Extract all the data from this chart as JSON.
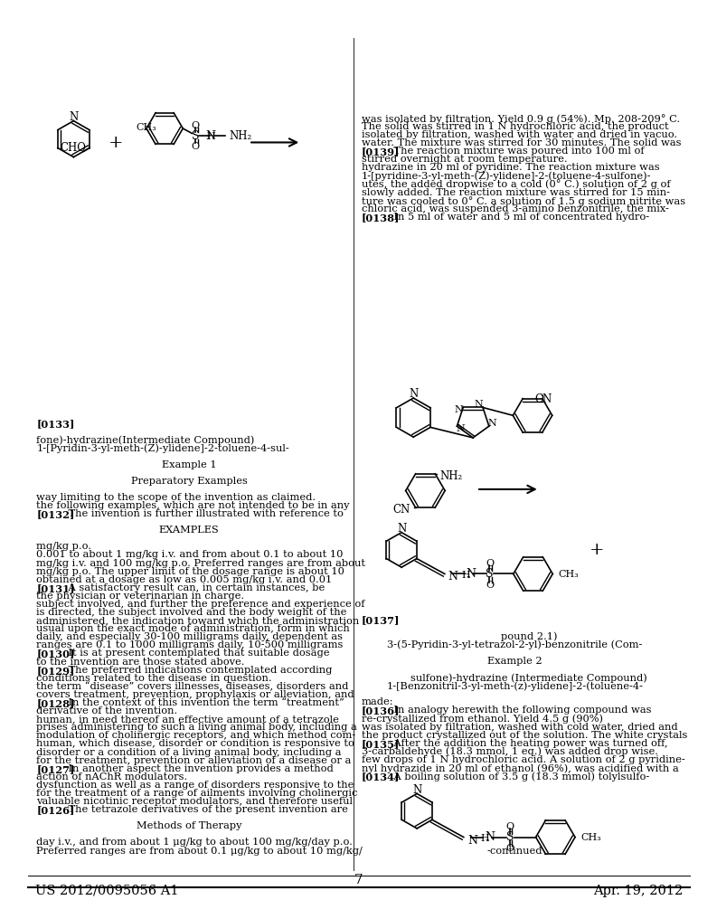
{
  "bg_color": "#ffffff",
  "header_left": "US 2012/0095056 A1",
  "header_right": "Apr. 19, 2012",
  "page_number": "7",
  "continued_label": "-continued",
  "left_col_lines": [
    "Preferred ranges are from about 0.1 μg/kg to about 10 mg/kg/",
    "day i.v., and from about 1 μg/kg to about 100 mg/kg/day p.o.",
    "",
    "Methods of Therapy",
    "",
    "[0126]    The tetrazole derivatives of the present invention are",
    "valuable nicotinic receptor modulators, and therefore useful",
    "for the treatment of a range of ailments involving cholinergic",
    "dysfunction as well as a range of disorders responsive to the",
    "action of nAChR modulators.",
    "[0127]    In another aspect the invention provides a method",
    "for the treatment, prevention or alleviation of a disease or a",
    "disorder or a condition of a living animal body, including a",
    "human, which disease, disorder or condition is responsive to",
    "modulation of cholinergic receptors, and which method com-",
    "prises administering to such a living animal body, including a",
    "human, in need thereof an effective amount of a tetrazole",
    "derivative of the invention.",
    "[0128]    In the context of this invention the term “treatment”",
    "covers treatment, prevention, prophylaxis or alleviation, and",
    "the term “disease” covers illnesses, diseases, disorders and",
    "conditions related to the disease in question.",
    "[0129]    The preferred indications contemplated according",
    "to the invention are those stated above.",
    "[0130]    It is at present contemplated that suitable dosage",
    "ranges are 0.1 to 1000 milligrams daily, 10-500 milligrams",
    "daily, and especially 30-100 milligrams daily, dependent as",
    "usual upon the exact mode of administration, form in which",
    "administered, the indication toward which the administration",
    "is directed, the subject involved and the body weight of the",
    "subject involved, and further the preference and experience of",
    "the physician or veterinarian in charge.",
    "[0131]    A satisfactory result can, in certain instances, be",
    "obtained at a dosage as low as 0.005 mg/kg i.v. and 0.01",
    "mg/kg p.o. The upper limit of the dosage range is about 10",
    "mg/kg i.v. and 100 mg/kg p.o. Preferred ranges are from about",
    "0.001 to about 1 mg/kg i.v. and from about 0.1 to about 10",
    "mg/kg p.o.",
    "",
    "EXAMPLES",
    "",
    "[0132]    The invention is further illustrated with reference to",
    "the following examples, which are not intended to be in any",
    "way limiting to the scope of the invention as claimed.",
    "",
    "Preparatory Examples",
    "",
    "Example 1",
    "",
    "1-[Pyridin-3-yl-meth-(Z)-ylidene]-2-toluene-4-sul-",
    "fone)-hydrazine(Intermediate Compound)",
    "",
    "[0133]"
  ],
  "right_col_lines": [
    "[0134]    A boiling solution of 3.5 g (18.3 mmol) tolylsulfo-",
    "nyl hydrazide in 20 ml of ethanol (96%), was acidified with a",
    "few drops of 1 N hydrochloric acid. A solution of 2 g pyridine-",
    "3-carbaldehyde (18.3 mmol, 1 eq.) was added drop wise.",
    "[0135]    After the addition the heating power was turned off,",
    "the product crystallized out of the solution. The white crystals",
    "was isolated by filtration, washed with cold water, dried and",
    "re-crystallized from ethanol. Yield 4.5 g (90%)",
    "[0136]    In analogy herewith the following compound was",
    "made:",
    "",
    "1-[Benzonitril-3-yl-meth-(z)-ylidene]-2-(toluene-4-",
    "    sulfone)-hydrazine (Intermediate Compound)",
    "",
    "Example 2",
    "",
    "3-(5-Pyridin-3-yl-tetrazol-2-yl)-benzonitrile (Com-",
    "        pound 2.1)",
    "",
    "[0137]"
  ],
  "right_col_lines2": [
    "[0138]    In 5 ml of water and 5 ml of concentrated hydro-",
    "chloric acid, was suspended 3-amino benzonitrile, the mix-",
    "ture was cooled to 0° C. a solution of 1.5 g sodium nitrite was",
    "slowly added. The reaction mixture was stirred for 15 min-",
    "utes, the added dropwise to a cold (0° C.) solution of 2 g of",
    "1-[pyridine-3-yl-meth-(Z)-ylidene]-2-(toluene-4-sulfone)-",
    "hydrazine in 20 ml of pyridine. The reaction mixture was",
    "stirred overnight at room temperature.",
    "[0139]    The reaction mixture was poured into 100 ml of",
    "water. The mixture was stirred for 30 minutes. The solid was",
    "isolated by filtration, washed with water and dried in vacuo.",
    "The solid was stirred in 1 N hydrochloric acid, the product",
    "was isolated by filtration. Yield 0.9 g (54%). Mp. 208-209° C."
  ]
}
